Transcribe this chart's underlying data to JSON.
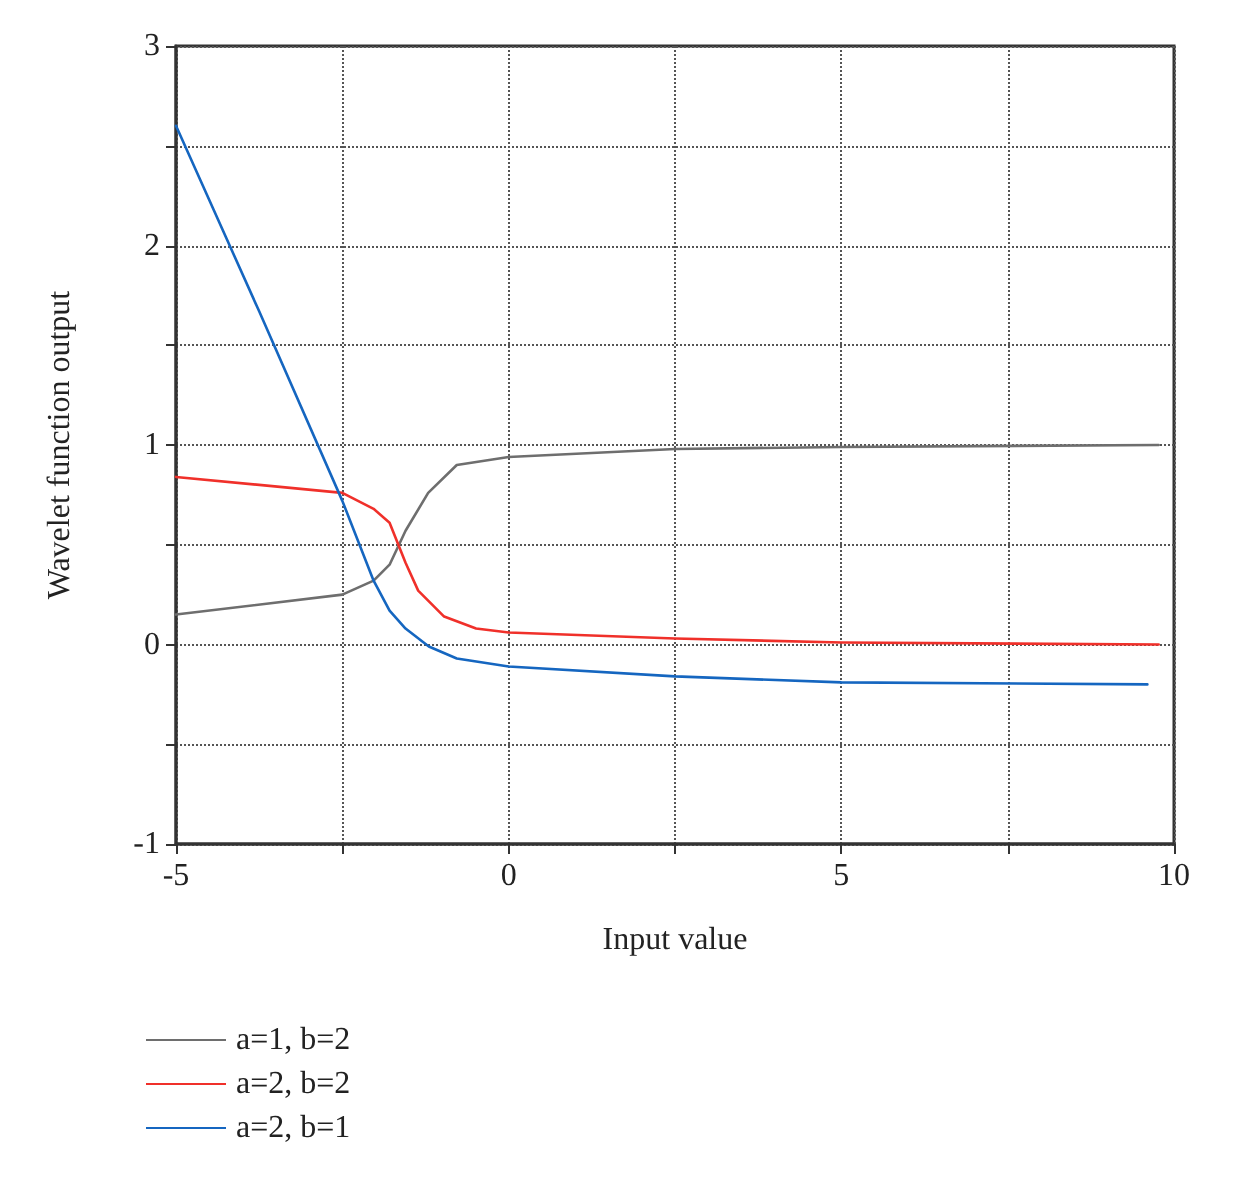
{
  "chart_data": {
    "type": "line",
    "xlabel": "Input value",
    "ylabel": "Wavelet function output",
    "xlim": [
      -5,
      10
    ],
    "ylim": [
      -1,
      3
    ],
    "xticks": [
      -5,
      {
        "value": -2.5,
        "label": null
      },
      0,
      {
        "value": 2.5,
        "label": null
      },
      5,
      {
        "value": 7.5,
        "label": null
      },
      10
    ],
    "yticks": [
      -1,
      {
        "value": -0.5,
        "label": null
      },
      0,
      {
        "value": 0.5,
        "label": null
      },
      1,
      {
        "value": 1.5,
        "label": null
      },
      2,
      {
        "value": 2.5,
        "label": null
      },
      3
    ],
    "grid": true,
    "legend": "bottom left",
    "marker": "none",
    "line_style": "solid",
    "series": [
      {
        "name": "a=1, b=2",
        "color": "#6e6e6e",
        "x": [
          -5,
          -2.5,
          -2.03,
          -1.79,
          -1.55,
          -1.21,
          -0.78,
          0,
          2.5,
          5,
          9.77
        ],
        "values": [
          0.15,
          0.25,
          0.32,
          0.4,
          0.57,
          0.76,
          0.9,
          0.94,
          0.98,
          0.99,
          1.0
        ]
      },
      {
        "name": "a=2, b=2",
        "color": "#f0302a",
        "x": [
          -5,
          -2.5,
          -2.03,
          -1.79,
          -1.55,
          -1.36,
          -0.97,
          -0.49,
          0,
          2.5,
          5,
          9.77
        ],
        "values": [
          0.84,
          0.76,
          0.68,
          0.61,
          0.41,
          0.27,
          0.14,
          0.08,
          0.06,
          0.03,
          0.01,
          0.0
        ]
      },
      {
        "name": "a=2, b=1",
        "color": "#1566c0",
        "x": [
          -5,
          -3.75,
          -2.5,
          -2.03,
          -1.79,
          -1.55,
          -1.2,
          -0.78,
          0,
          2.5,
          5,
          9.6
        ],
        "values": [
          2.6,
          1.67,
          0.72,
          0.32,
          0.17,
          0.08,
          -0.01,
          -0.07,
          -0.11,
          -0.16,
          -0.19,
          -0.2
        ]
      }
    ]
  }
}
